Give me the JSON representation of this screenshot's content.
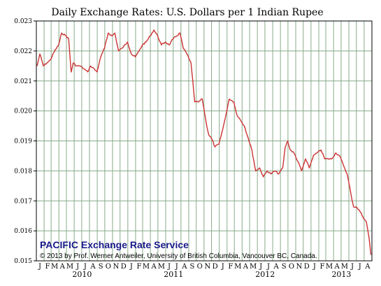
{
  "chart_data": {
    "type": "line",
    "title": "Daily Exchange Rates: U.S. Dollars per 1 Indian Rupee",
    "xlabel": "",
    "ylabel": "",
    "ylim": [
      0.015,
      0.023
    ],
    "yticks": [
      "0.015",
      "0.016",
      "0.017",
      "0.018",
      "0.019",
      "0.020",
      "0.021",
      "0.022",
      "0.023"
    ],
    "xlim": [
      "2010-01-01",
      "2013-09-01"
    ],
    "month_labels": [
      "J",
      "F",
      "M",
      "A",
      "M",
      "J",
      "J",
      "A",
      "S",
      "O",
      "N",
      "D",
      "J",
      "F",
      "M",
      "A",
      "M",
      "J",
      "J",
      "A",
      "S",
      "O",
      "N",
      "D",
      "J",
      "F",
      "M",
      "A",
      "M",
      "J",
      "J",
      "A",
      "S",
      "O",
      "N",
      "D",
      "J",
      "F",
      "M",
      "A",
      "M",
      "J",
      "J",
      "A"
    ],
    "year_labels": [
      "2010",
      "2011",
      "2012",
      "2013"
    ],
    "grid": true,
    "series": [
      {
        "color": "#cc3333",
        "points": [
          [
            "2010-01-04",
            0.0215
          ],
          [
            "2010-01-15",
            0.0219
          ],
          [
            "2010-01-29",
            0.0215
          ],
          [
            "2010-02-12",
            0.0216
          ],
          [
            "2010-02-26",
            0.0217
          ],
          [
            "2010-03-15",
            0.022
          ],
          [
            "2010-03-31",
            0.0222
          ],
          [
            "2010-04-12",
            0.0226
          ],
          [
            "2010-04-30",
            0.0225
          ],
          [
            "2010-05-10",
            0.0224
          ],
          [
            "2010-05-20",
            0.0213
          ],
          [
            "2010-05-28",
            0.0216
          ],
          [
            "2010-06-10",
            0.0215
          ],
          [
            "2010-06-25",
            0.0215
          ],
          [
            "2010-07-10",
            0.0214
          ],
          [
            "2010-07-25",
            0.0213
          ],
          [
            "2010-08-05",
            0.0215
          ],
          [
            "2010-08-20",
            0.0214
          ],
          [
            "2010-08-31",
            0.0213
          ],
          [
            "2010-09-15",
            0.0218
          ],
          [
            "2010-09-30",
            0.0221
          ],
          [
            "2010-10-15",
            0.0226
          ],
          [
            "2010-10-30",
            0.0225
          ],
          [
            "2010-11-10",
            0.0226
          ],
          [
            "2010-11-25",
            0.022
          ],
          [
            "2010-12-10",
            0.0221
          ],
          [
            "2010-12-31",
            0.0223
          ],
          [
            "2011-01-15",
            0.0219
          ],
          [
            "2011-01-31",
            0.0218
          ],
          [
            "2011-02-15",
            0.022
          ],
          [
            "2011-02-28",
            0.0222
          ],
          [
            "2011-03-15",
            0.0223
          ],
          [
            "2011-03-31",
            0.0225
          ],
          [
            "2011-04-15",
            0.0227
          ],
          [
            "2011-04-30",
            0.0225
          ],
          [
            "2011-05-15",
            0.0222
          ],
          [
            "2011-05-31",
            0.0223
          ],
          [
            "2011-06-15",
            0.0222
          ],
          [
            "2011-06-30",
            0.0224
          ],
          [
            "2011-07-15",
            0.0225
          ],
          [
            "2011-07-28",
            0.0226
          ],
          [
            "2011-08-10",
            0.0221
          ],
          [
            "2011-08-25",
            0.0219
          ],
          [
            "2011-09-10",
            0.0216
          ],
          [
            "2011-09-25",
            0.0203
          ],
          [
            "2011-10-10",
            0.0203
          ],
          [
            "2011-10-25",
            0.0204
          ],
          [
            "2011-11-10",
            0.0196
          ],
          [
            "2011-11-20",
            0.0192
          ],
          [
            "2011-11-30",
            0.0191
          ],
          [
            "2011-12-15",
            0.0188
          ],
          [
            "2011-12-31",
            0.0189
          ],
          [
            "2012-01-15",
            0.0194
          ],
          [
            "2012-01-31",
            0.02
          ],
          [
            "2012-02-10",
            0.0204
          ],
          [
            "2012-02-28",
            0.0203
          ],
          [
            "2012-03-10",
            0.0199
          ],
          [
            "2012-03-25",
            0.0197
          ],
          [
            "2012-04-10",
            0.0195
          ],
          [
            "2012-04-25",
            0.0191
          ],
          [
            "2012-05-10",
            0.0187
          ],
          [
            "2012-05-25",
            0.018
          ],
          [
            "2012-06-10",
            0.0181
          ],
          [
            "2012-06-25",
            0.0178
          ],
          [
            "2012-07-10",
            0.018
          ],
          [
            "2012-07-25",
            0.0179
          ],
          [
            "2012-08-10",
            0.018
          ],
          [
            "2012-08-25",
            0.0179
          ],
          [
            "2012-09-10",
            0.0181
          ],
          [
            "2012-09-20",
            0.0188
          ],
          [
            "2012-09-30",
            0.019
          ],
          [
            "2012-10-10",
            0.0187
          ],
          [
            "2012-10-25",
            0.0186
          ],
          [
            "2012-11-10",
            0.0183
          ],
          [
            "2012-11-25",
            0.018
          ],
          [
            "2012-12-10",
            0.0184
          ],
          [
            "2012-12-25",
            0.0181
          ],
          [
            "2013-01-10",
            0.0185
          ],
          [
            "2013-01-25",
            0.0186
          ],
          [
            "2013-02-10",
            0.0187
          ],
          [
            "2013-02-25",
            0.0184
          ],
          [
            "2013-03-10",
            0.0184
          ],
          [
            "2013-03-25",
            0.0184
          ],
          [
            "2013-04-10",
            0.0186
          ],
          [
            "2013-04-25",
            0.0185
          ],
          [
            "2013-05-10",
            0.0182
          ],
          [
            "2013-05-25",
            0.0179
          ],
          [
            "2013-06-10",
            0.0172
          ],
          [
            "2013-06-20",
            0.0168
          ],
          [
            "2013-06-30",
            0.0168
          ],
          [
            "2013-07-10",
            0.0167
          ],
          [
            "2013-07-20",
            0.0166
          ],
          [
            "2013-07-31",
            0.0164
          ],
          [
            "2013-08-10",
            0.0163
          ],
          [
            "2013-08-20",
            0.0158
          ],
          [
            "2013-08-28",
            0.0152
          ]
        ]
      }
    ],
    "annotations": {
      "brand": "PACIFIC Exchange Rate Service",
      "copyright": "© 2013 by Prof. Werner Antweiler, University of British Columbia, Vancouver BC, Canada."
    },
    "colors": {
      "grid": "#88aa88",
      "line": "#cc3333",
      "brand": "#1a1a8c"
    }
  }
}
